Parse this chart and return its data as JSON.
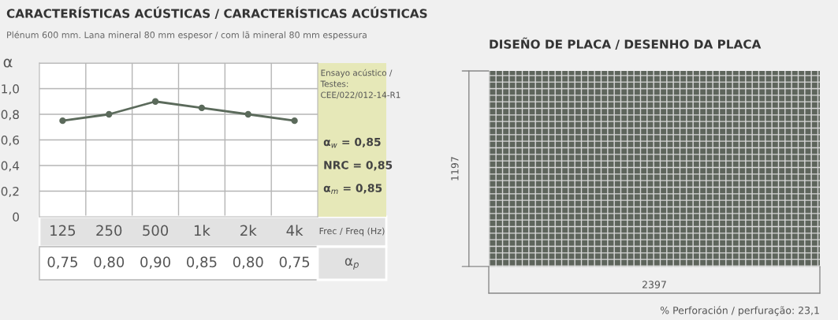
{
  "chart_data": [
    {
      "type": "line",
      "title": "CARACTERÍSTICAS ACÚSTICAS / CARACTERÍSTICAS ACÚSTICAS",
      "subtitle": "Plénum 600 mm. Lana mineral 80 mm espesor / com lã mineral 80 mm espessura",
      "ylabel": "α",
      "xlabel": "Frec / Freq (Hz)",
      "categories": [
        "125",
        "250",
        "500",
        "1k",
        "2k",
        "4k"
      ],
      "series": [
        {
          "color": "#5b6a5b",
          "values": [
            0.75,
            0.8,
            0.9,
            0.85,
            0.8,
            0.75
          ],
          "value_labels": [
            "0,75",
            "0,80",
            "0,90",
            "0,85",
            "0,80",
            "0,75"
          ]
        }
      ],
      "ylim": [
        0,
        1.2
      ],
      "yticks": [
        0,
        {
          "value": 0.2,
          "label": "0,2"
        },
        {
          "value": 0.4,
          "label": "0,4"
        },
        {
          "value": 0.6,
          "label": "0,6"
        },
        {
          "value": 0.8,
          "label": "0,8"
        },
        {
          "value": 1.0,
          "label": "1,0"
        },
        {
          "value": 1.2,
          "label": null
        }
      ],
      "grid": true,
      "marker": "circle",
      "line_style": "solid",
      "annotations": [
        "Ensayo acústico /\nTestes:\nCEE/022/012-14-R1",
        "α$_{w}$ = 0,85",
        "NRC = 0,85",
        "α$_{m}$ = 0,85",
        "α$_{p}$"
      ]
    },
    {
      "type": "other",
      "title": "DISEÑO DE PLACA / DESENHO DA PLACA",
      "annotations": [
        "1197",
        "2397",
        "% Perforación / perfuração: 23,1"
      ]
    }
  ]
}
